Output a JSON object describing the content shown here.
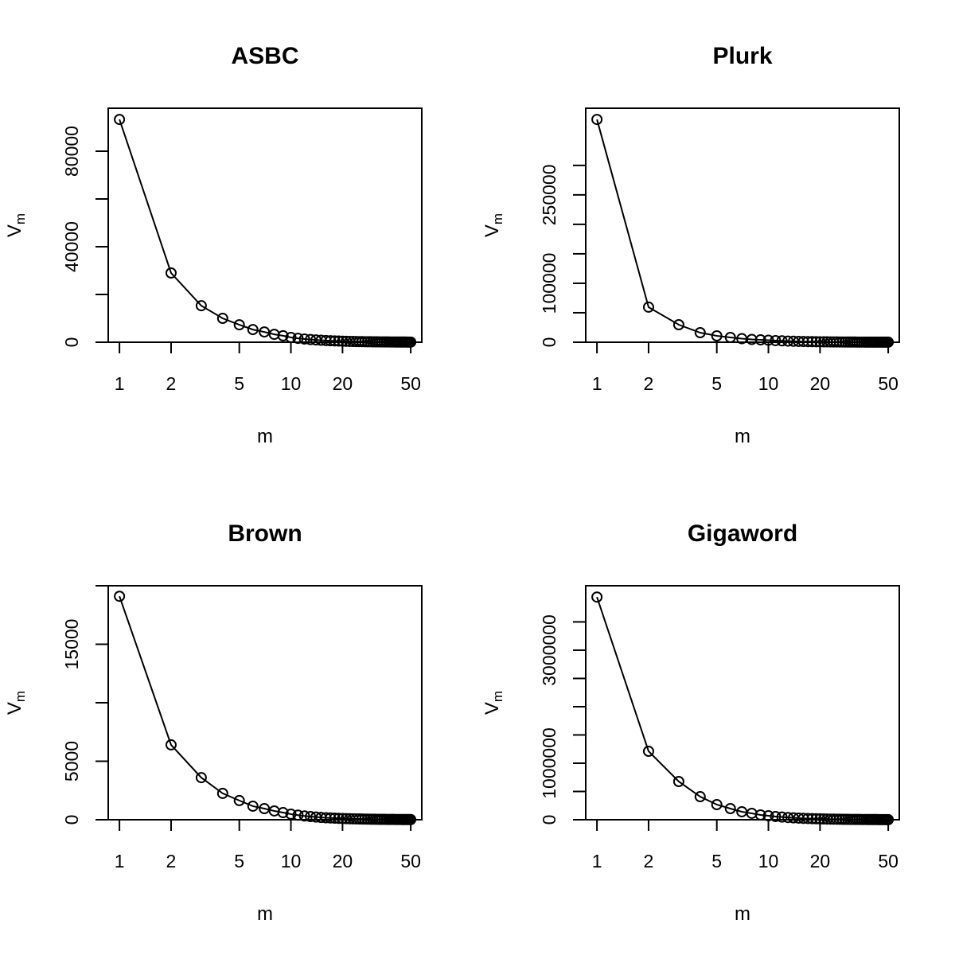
{
  "chart_data": [
    {
      "type": "line",
      "title": "ASBC",
      "xlabel": "m",
      "ylabel": "V",
      "ylabel_subscript": "m",
      "color": "#000000",
      "xlog": true,
      "x": [
        1,
        2,
        3,
        4,
        5,
        6,
        7,
        8,
        9,
        10,
        11,
        12,
        13,
        14,
        15,
        16,
        17,
        18,
        19,
        20,
        21,
        22,
        23,
        24,
        25,
        26,
        27,
        28,
        29,
        30,
        31,
        32,
        33,
        34,
        35,
        36,
        37,
        38,
        39,
        40,
        41,
        42,
        43,
        44,
        45,
        46,
        47,
        48,
        49,
        50
      ],
      "values": [
        93300,
        29000,
        15300,
        10000,
        7300,
        5300,
        4300,
        3300,
        2700,
        2000,
        1620,
        1340,
        1120,
        950,
        820,
        710,
        620,
        550,
        490,
        435,
        390,
        350,
        315,
        290,
        265,
        240,
        220,
        205,
        190,
        175,
        160,
        150,
        140,
        130,
        125,
        115,
        110,
        100,
        95,
        90,
        85,
        80,
        76,
        72,
        69,
        66,
        63,
        60,
        57,
        55
      ],
      "xlim": [
        0.86,
        58
      ],
      "xticks": [
        1,
        2,
        5,
        10,
        20,
        50
      ],
      "ylim": [
        0,
        98000
      ],
      "yticks": [
        0,
        40000,
        80000
      ],
      "yticks_unlabeled": [
        20000,
        60000
      ]
    },
    {
      "type": "line",
      "title": "Plurk",
      "xlabel": "m",
      "ylabel": "V",
      "ylabel_subscript": "m",
      "color": "#000000",
      "xlog": true,
      "x": [
        1,
        2,
        3,
        4,
        5,
        6,
        7,
        8,
        9,
        10,
        11,
        12,
        13,
        14,
        15,
        16,
        17,
        18,
        19,
        20,
        21,
        22,
        23,
        24,
        25,
        26,
        27,
        28,
        29,
        30,
        31,
        32,
        33,
        34,
        35,
        36,
        37,
        38,
        39,
        40,
        41,
        42,
        43,
        44,
        45,
        46,
        47,
        48,
        49,
        50
      ],
      "values": [
        378000,
        59500,
        29700,
        16200,
        10800,
        8100,
        6000,
        4700,
        4000,
        3400,
        2750,
        2280,
        1910,
        1620,
        1390,
        1210,
        1060,
        930,
        830,
        740,
        665,
        600,
        540,
        490,
        450,
        410,
        380,
        350,
        325,
        300,
        280,
        260,
        240,
        225,
        210,
        195,
        185,
        175,
        165,
        155,
        145,
        140,
        130,
        125,
        118,
        112,
        107,
        102,
        97,
        93
      ],
      "xlim": [
        0.86,
        58
      ],
      "xticks": [
        1,
        2,
        5,
        10,
        20,
        50
      ],
      "ylim": [
        0,
        397000
      ],
      "yticks": [
        0,
        100000,
        250000
      ],
      "yticks_unlabeled": [
        50000,
        150000,
        200000,
        300000
      ]
    },
    {
      "type": "line",
      "title": "Brown",
      "xlabel": "m",
      "ylabel": "V",
      "ylabel_subscript": "m",
      "color": "#000000",
      "xlog": true,
      "x": [
        1,
        2,
        3,
        4,
        5,
        6,
        7,
        8,
        9,
        10,
        11,
        12,
        13,
        14,
        15,
        16,
        17,
        18,
        19,
        20,
        21,
        22,
        23,
        24,
        25,
        26,
        27,
        28,
        29,
        30,
        31,
        32,
        33,
        34,
        35,
        36,
        37,
        38,
        39,
        40,
        41,
        42,
        43,
        44,
        45,
        46,
        47,
        48,
        49,
        50
      ],
      "values": [
        19100,
        6400,
        3600,
        2250,
        1640,
        1160,
        950,
        750,
        610,
        480,
        390,
        320,
        270,
        230,
        195,
        170,
        150,
        132,
        118,
        105,
        94,
        84,
        76,
        70,
        64,
        58,
        53,
        49,
        46,
        42,
        39,
        36,
        34,
        32,
        30,
        28,
        26,
        24,
        23,
        22,
        21,
        20,
        19,
        18,
        17,
        16,
        15,
        14,
        14,
        13
      ],
      "xlim": [
        0.86,
        58
      ],
      "xticks": [
        1,
        2,
        5,
        10,
        20,
        50
      ],
      "ylim": [
        0,
        20000
      ],
      "yticks": [
        0,
        5000,
        15000
      ],
      "yticks_unlabeled": [
        10000,
        20000
      ]
    },
    {
      "type": "line",
      "title": "Gigaword",
      "xlabel": "m",
      "ylabel": "V",
      "ylabel_subscript": "m",
      "color": "#000000",
      "xlog": true,
      "x": [
        1,
        2,
        3,
        4,
        5,
        6,
        7,
        8,
        9,
        10,
        11,
        12,
        13,
        14,
        15,
        16,
        17,
        18,
        19,
        20,
        21,
        22,
        23,
        24,
        25,
        26,
        27,
        28,
        29,
        30,
        31,
        32,
        33,
        34,
        35,
        36,
        37,
        38,
        39,
        40,
        41,
        42,
        43,
        44,
        45,
        46,
        47,
        48,
        49,
        50
      ],
      "values": [
        3940000,
        1211000,
        676000,
        408000,
        268000,
        197000,
        141000,
        113000,
        85000,
        70000,
        56700,
        46800,
        39200,
        33300,
        28600,
        24800,
        21700,
        19200,
        17100,
        15200,
        13700,
        12300,
        11100,
        10100,
        9200,
        8400,
        7700,
        7100,
        6600,
        6100,
        5600,
        5200,
        4900,
        4600,
        4300,
        4000,
        3800,
        3500,
        3300,
        3100,
        3000,
        2800,
        2700,
        2500,
        2400,
        2300,
        2200,
        2100,
        2000,
        1900
      ],
      "xlim": [
        0.86,
        58
      ],
      "xticks": [
        1,
        2,
        5,
        10,
        20,
        50
      ],
      "ylim": [
        0,
        4140000
      ],
      "yticks": [
        0,
        1000000,
        3000000
      ],
      "yticks_unlabeled": [
        500000,
        1500000,
        2000000,
        2500000,
        3500000
      ]
    }
  ]
}
